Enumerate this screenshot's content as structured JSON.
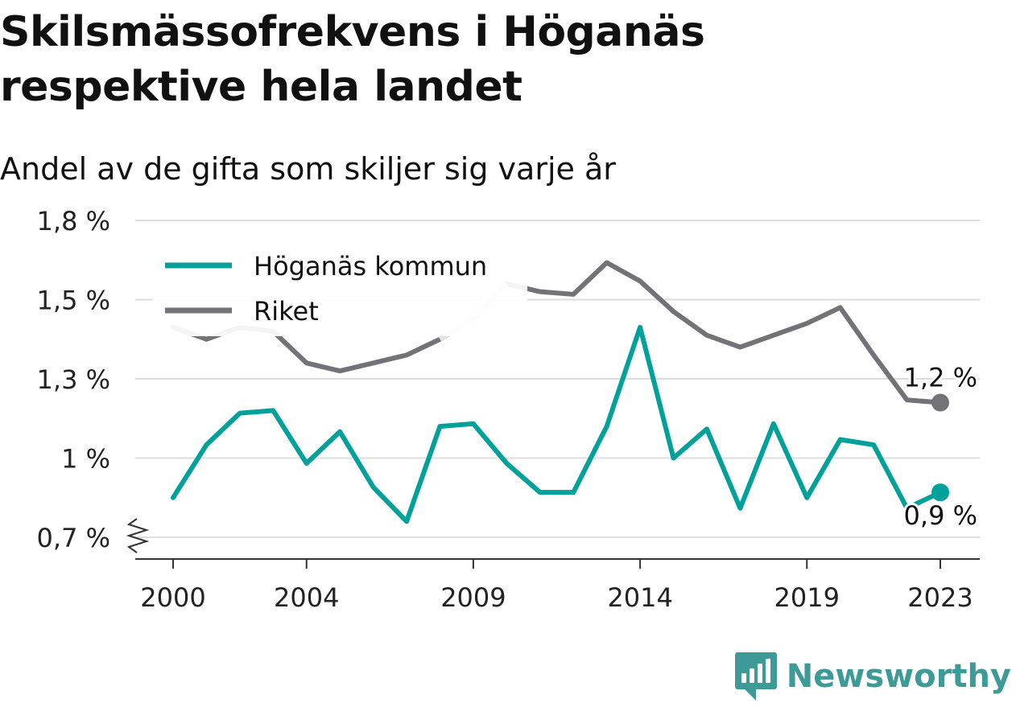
{
  "title_line1": "Skilsmässofrekvens i Höganäs",
  "title_line2": "respektive hela landet",
  "subtitle": "Andel av de gifta som skiljer sig varje år",
  "brand": {
    "name": "Newsworthy",
    "icon": "newsworthy-logo-icon",
    "color": "#3d9a96"
  },
  "chart_data": {
    "type": "line",
    "title": "Skilsmässofrekvens i Höganäs respektive hela landet",
    "subtitle": "Andel av de gifta som skiljer sig varje år",
    "x": [
      2000,
      2001,
      2002,
      2003,
      2004,
      2005,
      2006,
      2007,
      2008,
      2009,
      2010,
      2011,
      2012,
      2013,
      2014,
      2015,
      2016,
      2017,
      2018,
      2019,
      2020,
      2021,
      2022,
      2023
    ],
    "xticks": [
      2000,
      2004,
      2009,
      2014,
      2019,
      2023
    ],
    "yticks": [
      0.7,
      1.0,
      1.3,
      1.5,
      1.8
    ],
    "ytick_labels": [
      "0,7 %",
      "1 %",
      "1,3 %",
      "1,5 %",
      "1,8 %"
    ],
    "ylim": [
      0.7,
      1.8
    ],
    "axis_break": true,
    "grid": true,
    "legend_position": "top-left",
    "series": [
      {
        "name": "Höganäs kommun",
        "color": "#00a19a",
        "values": [
          0.85,
          1.05,
          1.17,
          1.18,
          0.98,
          1.1,
          0.89,
          0.76,
          1.12,
          1.13,
          0.98,
          0.87,
          0.87,
          1.12,
          1.43,
          1.0,
          1.11,
          0.81,
          1.13,
          0.85,
          1.07,
          1.05,
          0.81,
          0.87
        ],
        "end_label": "0,9 %"
      },
      {
        "name": "Riket",
        "color": "#737278",
        "highlight_color": "#e3e3e3",
        "highlight_range": [
          2008,
          2010
        ],
        "values": [
          1.43,
          1.4,
          1.43,
          1.42,
          1.34,
          1.32,
          1.34,
          1.36,
          1.4,
          1.45,
          1.56,
          1.53,
          1.52,
          1.64,
          1.57,
          1.47,
          1.41,
          1.38,
          1.41,
          1.44,
          1.48,
          1.36,
          1.22,
          1.21
        ],
        "end_label": "1,2 %"
      }
    ]
  }
}
